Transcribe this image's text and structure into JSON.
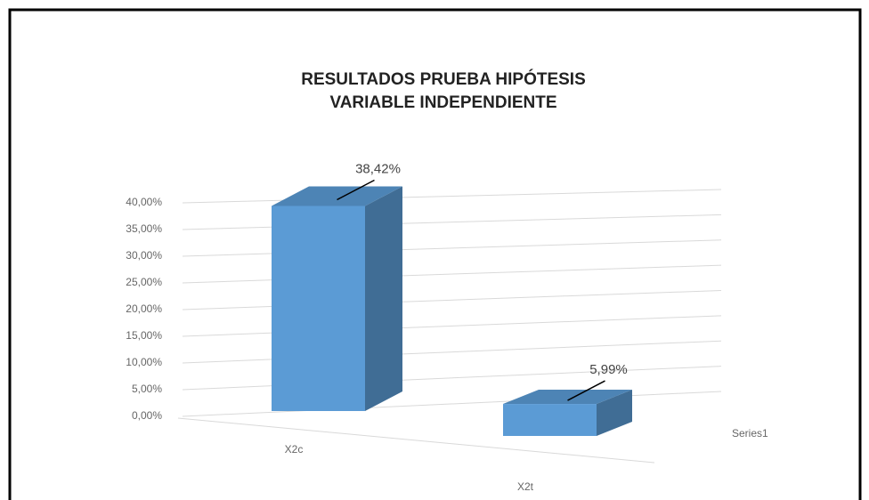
{
  "chart_data": {
    "type": "bar3d",
    "title": [
      "RESULTADOS PRUEBA HIPÓTESIS",
      "VARIABLE INDEPENDIENTE"
    ],
    "categories": [
      "X2c",
      "X2t"
    ],
    "series": [
      {
        "name": "Series1",
        "color": "#5b9bd5",
        "values": [
          38.42,
          5.99
        ],
        "value_labels": [
          "38,42%",
          "5,99%"
        ]
      }
    ],
    "ylim": [
      0,
      40
    ],
    "yticks": [
      {
        "value": 0,
        "label": "0,00%"
      },
      {
        "value": 5,
        "label": "5,00%"
      },
      {
        "value": 10,
        "label": "10,00%"
      },
      {
        "value": 15,
        "label": "15,00%"
      },
      {
        "value": 20,
        "label": "20,00%"
      },
      {
        "value": 25,
        "label": "25,00%"
      },
      {
        "value": 30,
        "label": "30,00%"
      },
      {
        "value": 35,
        "label": "35,00%"
      },
      {
        "value": 40,
        "label": "40,00%"
      }
    ],
    "grid": true
  }
}
